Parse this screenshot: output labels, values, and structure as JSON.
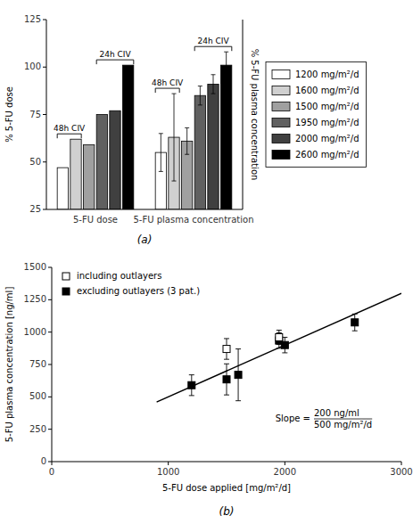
{
  "chart_data": [
    {
      "type": "bar",
      "subtitle": "(a)",
      "ylabel": "% 5-FU dose",
      "y2label": "% 5-FU plasma concentration",
      "categories": [
        "5-FU dose",
        "5-FU plasma concentration"
      ],
      "series": [
        {
          "name": "1200 mg/m²/d",
          "color": "#ffffff",
          "values": [
            47,
            55
          ],
          "errors": [
            null,
            10
          ]
        },
        {
          "name": "1600 mg/m²/d",
          "color": "#d0d0d0",
          "values": [
            62,
            63
          ],
          "errors": [
            null,
            23
          ]
        },
        {
          "name": "1500 mg/m²/d",
          "color": "#a0a0a0",
          "values": [
            59,
            61
          ],
          "errors": [
            null,
            7
          ]
        },
        {
          "name": "1950 mg/m²/d",
          "color": "#606060",
          "values": [
            75,
            85
          ],
          "errors": [
            null,
            5
          ]
        },
        {
          "name": "2000 mg/m²/d",
          "color": "#404040",
          "values": [
            77,
            91
          ],
          "errors": [
            null,
            5
          ]
        },
        {
          "name": "2600 mg/m²/d",
          "color": "#000000",
          "values": [
            101,
            101
          ],
          "errors": [
            null,
            7
          ]
        }
      ],
      "ylim": [
        25,
        125
      ],
      "yticks": [
        25,
        50,
        75,
        100,
        125
      ],
      "grid": false,
      "legend": "right",
      "annotations": [
        {
          "text": "48h CIV",
          "category": 0,
          "series": [
            0,
            1
          ]
        },
        {
          "text": "24h CIV",
          "category": 0,
          "series": [
            3,
            5
          ]
        },
        {
          "text": "48h CIV",
          "category": 1,
          "series": [
            0,
            1
          ]
        },
        {
          "text": "24h CIV",
          "category": 1,
          "series": [
            3,
            5
          ]
        }
      ]
    },
    {
      "type": "scatter",
      "subtitle": "(b)",
      "xlabel": "5-FU dose applied [mg/m²/d]",
      "ylabel": "5-FU plasma concentration [ng/ml]",
      "xlim": [
        0,
        3000
      ],
      "ylim": [
        0,
        1500
      ],
      "xticks": [
        0,
        1000,
        2000,
        3000
      ],
      "yticks": [
        0,
        250,
        500,
        750,
        1000,
        1250,
        1500
      ],
      "grid": false,
      "legend": "upper left",
      "series": [
        {
          "name": "including outlayers",
          "color": "#000000",
          "marker": "open-square",
          "x": [
            1500,
            1950
          ],
          "values": [
            870,
            960
          ],
          "errors": [
            80,
            55
          ]
        },
        {
          "name": "excluding outlayers (3 pat.)",
          "color": "#000000",
          "marker": "filled-square",
          "x": [
            1200,
            1500,
            1600,
            1950,
            2000,
            2600
          ],
          "values": [
            590,
            635,
            670,
            935,
            900,
            1075
          ],
          "errors": [
            80,
            120,
            200,
            60,
            60,
            65
          ]
        },
        {
          "type": "line",
          "color": "#000000",
          "x": [
            900,
            3000
          ],
          "values": [
            460,
            1300
          ]
        }
      ],
      "annotations": [
        {
          "text": "Slope =",
          "numerator": "200 ng/ml",
          "denominator": "500 mg/m²/d"
        }
      ]
    }
  ]
}
